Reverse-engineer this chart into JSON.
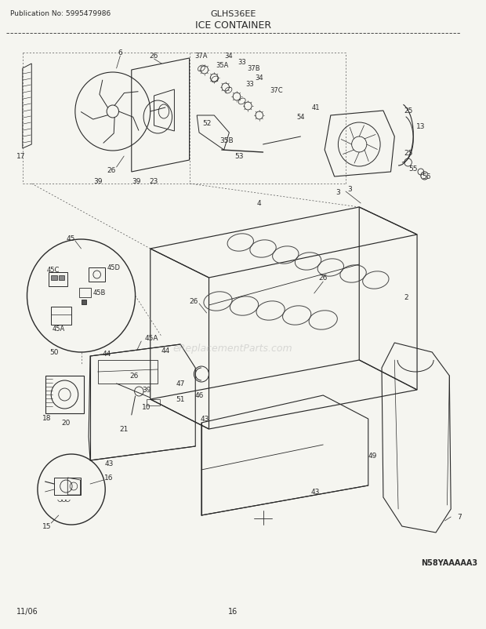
{
  "title_left": "Publication No: 5995479986",
  "title_center": "GLHS36EE",
  "title_diagram": "ICE CONTAINER",
  "footer_left": "11/06",
  "footer_center": "16",
  "footer_right": "N58YAAAAA3",
  "bg_color": "#f5f5f0",
  "line_color": "#2a2a2a",
  "text_color": "#1a1a1a",
  "fig_width": 6.2,
  "fig_height": 8.03,
  "dpi": 100
}
